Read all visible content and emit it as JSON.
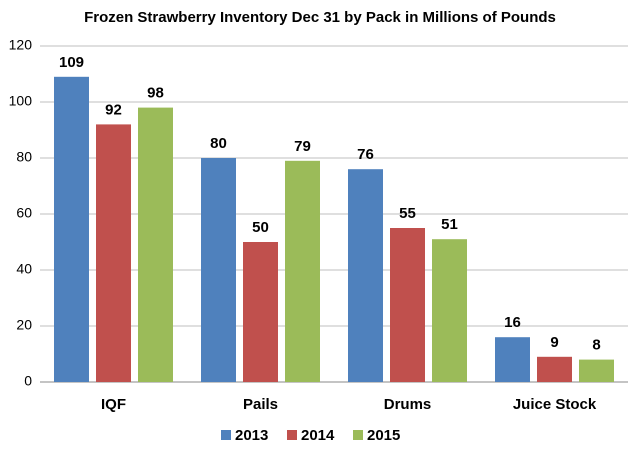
{
  "chart_data": {
    "type": "bar",
    "title": "Frozen Strawberry Inventory Dec 31 by Pack in Millions of Pounds",
    "categories": [
      "IQF",
      "Pails",
      "Drums",
      "Juice Stock"
    ],
    "series": [
      {
        "name": "2013",
        "color": "#4f81bd",
        "values": [
          109,
          80,
          76,
          16
        ]
      },
      {
        "name": "2014",
        "color": "#c0504d",
        "values": [
          92,
          50,
          55,
          9
        ]
      },
      {
        "name": "2015",
        "color": "#9bbb59",
        "values": [
          98,
          79,
          51,
          8
        ]
      }
    ],
    "ylim": [
      0,
      120
    ],
    "yticks": [
      0,
      20,
      40,
      60,
      80,
      100,
      120
    ],
    "grid": true,
    "legend": "bottom"
  }
}
